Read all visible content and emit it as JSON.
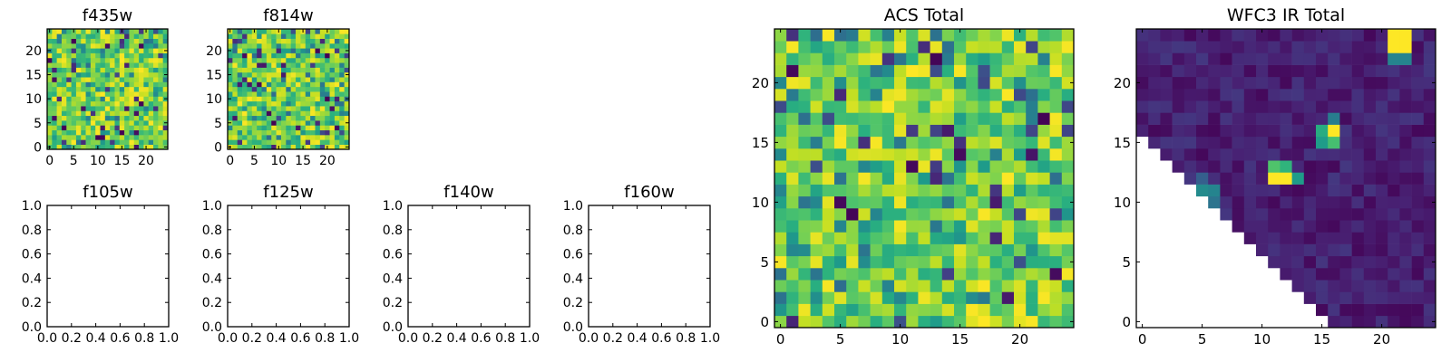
{
  "chart_data": [
    {
      "type": "heatmap",
      "title": "f435w",
      "xlim": [
        -0.5,
        24.5
      ],
      "ylim": [
        -0.5,
        24.5
      ],
      "xticks": [
        0,
        5,
        10,
        15,
        20
      ],
      "yticks": [
        0,
        5,
        10,
        15,
        20
      ],
      "xtick_labels": [
        "0",
        "5",
        "10",
        "15",
        "20"
      ],
      "ytick_labels": [
        "0",
        "5",
        "10",
        "15",
        "20"
      ],
      "grid": false,
      "colormap": "viridis",
      "grid_size": 25,
      "pattern": "noise",
      "seed": 11,
      "vmin_fraction": 0.0,
      "note_values": "dense noise image, mostly green/yellow pixels with scattered dark pixels"
    },
    {
      "type": "heatmap",
      "title": "f814w",
      "xlim": [
        -0.5,
        24.5
      ],
      "ylim": [
        -0.5,
        24.5
      ],
      "xticks": [
        0,
        5,
        10,
        15,
        20
      ],
      "yticks": [
        0,
        5,
        10,
        15,
        20
      ],
      "xtick_labels": [
        "0",
        "5",
        "10",
        "15",
        "20"
      ],
      "ytick_labels": [
        "0",
        "5",
        "10",
        "15",
        "20"
      ],
      "grid": false,
      "colormap": "viridis",
      "grid_size": 25,
      "pattern": "noise",
      "seed": 29
    },
    {
      "type": "empty",
      "title": "f105w",
      "xlim": [
        0,
        1
      ],
      "ylim": [
        0,
        1
      ],
      "xtick_labels": [
        "0.0",
        "0.2",
        "0.4",
        "0.6",
        "0.8",
        "1.0"
      ],
      "ytick_labels": [
        "0.0",
        "0.2",
        "0.4",
        "0.6",
        "0.8",
        "1.0"
      ]
    },
    {
      "type": "empty",
      "title": "f125w",
      "xlim": [
        0,
        1
      ],
      "ylim": [
        0,
        1
      ],
      "xtick_labels": [
        "0.0",
        "0.2",
        "0.4",
        "0.6",
        "0.8",
        "1.0"
      ],
      "ytick_labels": [
        "0.0",
        "0.2",
        "0.4",
        "0.6",
        "0.8",
        "1.0"
      ]
    },
    {
      "type": "empty",
      "title": "f140w",
      "xlim": [
        0,
        1
      ],
      "ylim": [
        0,
        1
      ],
      "xtick_labels": [
        "0.0",
        "0.2",
        "0.4",
        "0.6",
        "0.8",
        "1.0"
      ],
      "ytick_labels": [
        "0.0",
        "0.2",
        "0.4",
        "0.6",
        "0.8",
        "1.0"
      ]
    },
    {
      "type": "empty",
      "title": "f160w",
      "xlim": [
        0,
        1
      ],
      "ylim": [
        0,
        1
      ],
      "xtick_labels": [
        "0.0",
        "0.2",
        "0.4",
        "0.6",
        "0.8",
        "1.0"
      ],
      "ytick_labels": [
        "0.0",
        "0.2",
        "0.4",
        "0.6",
        "0.8",
        "1.0"
      ]
    },
    {
      "type": "heatmap",
      "title": "ACS Total",
      "xlim": [
        -0.5,
        24.5
      ],
      "ylim": [
        -0.5,
        24.5
      ],
      "xticks": [
        0,
        5,
        10,
        15,
        20
      ],
      "yticks": [
        0,
        5,
        10,
        15,
        20
      ],
      "xtick_labels": [
        "0",
        "5",
        "10",
        "15",
        "20"
      ],
      "ytick_labels": [
        "0",
        "5",
        "10",
        "15",
        "20"
      ],
      "grid": false,
      "colormap": "viridis",
      "grid_size": 25,
      "pattern": "noise",
      "seed": 47
    },
    {
      "type": "heatmap",
      "title": "WFC3 IR Total",
      "xlim": [
        -0.5,
        24.5
      ],
      "ylim": [
        -0.5,
        24.5
      ],
      "xticks": [
        0,
        5,
        10,
        15,
        20
      ],
      "yticks": [
        0,
        5,
        10,
        15,
        20
      ],
      "xtick_labels": [
        "0",
        "5",
        "10",
        "15",
        "20"
      ],
      "ytick_labels": [
        "0",
        "5",
        "10",
        "15",
        "20"
      ],
      "grid": false,
      "colormap": "viridis",
      "grid_size": 25,
      "pattern": "masked-triangle",
      "seed": 83,
      "mask_rule": "pixel blank when row < 16 - column",
      "bright_sources": [
        {
          "column": 21,
          "row": 23,
          "value": 1.0
        },
        {
          "column": 22,
          "row": 23,
          "value": 1.0
        },
        {
          "column": 21,
          "row": 24,
          "value": 1.0
        },
        {
          "column": 22,
          "row": 24,
          "value": 1.0
        },
        {
          "column": 21,
          "row": 22,
          "value": 0.45
        },
        {
          "column": 22,
          "row": 22,
          "value": 0.45
        },
        {
          "column": 16,
          "row": 16,
          "value": 1.0
        },
        {
          "column": 15,
          "row": 16,
          "value": 0.62
        },
        {
          "column": 16,
          "row": 15,
          "value": 0.7
        },
        {
          "column": 15,
          "row": 15,
          "value": 0.55
        },
        {
          "column": 16,
          "row": 17,
          "value": 0.42
        },
        {
          "column": 11,
          "row": 12,
          "value": 1.0
        },
        {
          "column": 12,
          "row": 12,
          "value": 1.0
        },
        {
          "column": 11,
          "row": 13,
          "value": 0.72
        },
        {
          "column": 12,
          "row": 13,
          "value": 0.65
        },
        {
          "column": 13,
          "row": 12,
          "value": 0.55
        },
        {
          "column": 5,
          "row": 11,
          "value": 0.48
        },
        {
          "column": 6,
          "row": 11,
          "value": 0.45
        },
        {
          "column": 5,
          "row": 12,
          "value": 0.3
        },
        {
          "column": 6,
          "row": 10,
          "value": 0.38
        }
      ]
    }
  ]
}
